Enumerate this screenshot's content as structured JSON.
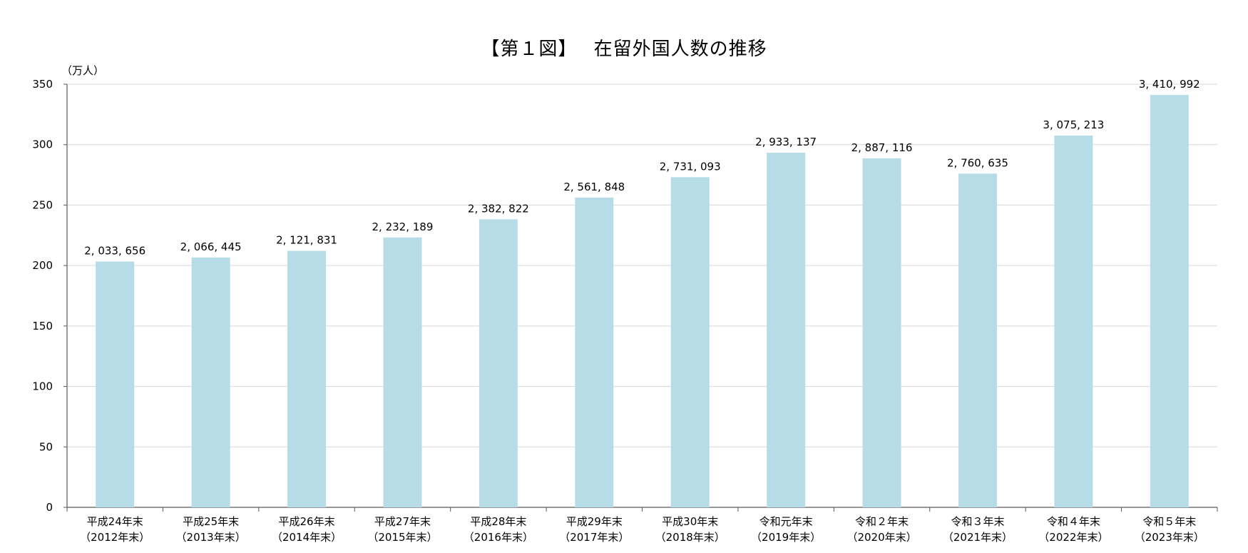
{
  "chart_data": {
    "type": "bar",
    "title": "【第１図】　 在留外国人数の推移",
    "ylabel": "（万人）",
    "xlabel": "",
    "ylim": [
      0,
      350
    ],
    "yticks": [
      0,
      50,
      100,
      150,
      200,
      250,
      300,
      350
    ],
    "grid": true,
    "categories": [
      [
        "平成24年末",
        "（2012年末）"
      ],
      [
        "平成25年末",
        "（2013年末）"
      ],
      [
        "平成26年末",
        "（2014年末）"
      ],
      [
        "平成27年末",
        "（2015年末）"
      ],
      [
        "平成28年末",
        "（2016年末）"
      ],
      [
        "平成29年末",
        "（2017年末）"
      ],
      [
        "平成30年末",
        "（2018年末）"
      ],
      [
        "令和元年末",
        "（2019年末）"
      ],
      [
        "令和２年末",
        "（2020年末）"
      ],
      [
        "令和３年末",
        "（2021年末）"
      ],
      [
        "令和４年末",
        "（2022年末）"
      ],
      [
        "令和５年末",
        "（2023年末）"
      ]
    ],
    "values": [
      203.3656,
      206.6445,
      212.1831,
      223.2189,
      238.2822,
      256.1848,
      273.1093,
      293.3137,
      288.7116,
      276.0635,
      307.5213,
      341.0992
    ],
    "data_labels": [
      "2, 033, 656",
      "2, 066, 445",
      "2, 121, 831",
      "2, 232, 189",
      "2, 382, 822",
      "2, 561, 848",
      "2, 731, 093",
      "2, 933, 137",
      "2, 887, 116",
      "2, 760, 635",
      "3, 075, 213",
      "3, 410, 992"
    ],
    "colors": {
      "bar": "#b6dde7",
      "grid": "#d9d9d9",
      "axis": "#595959",
      "text": "#000000"
    }
  }
}
